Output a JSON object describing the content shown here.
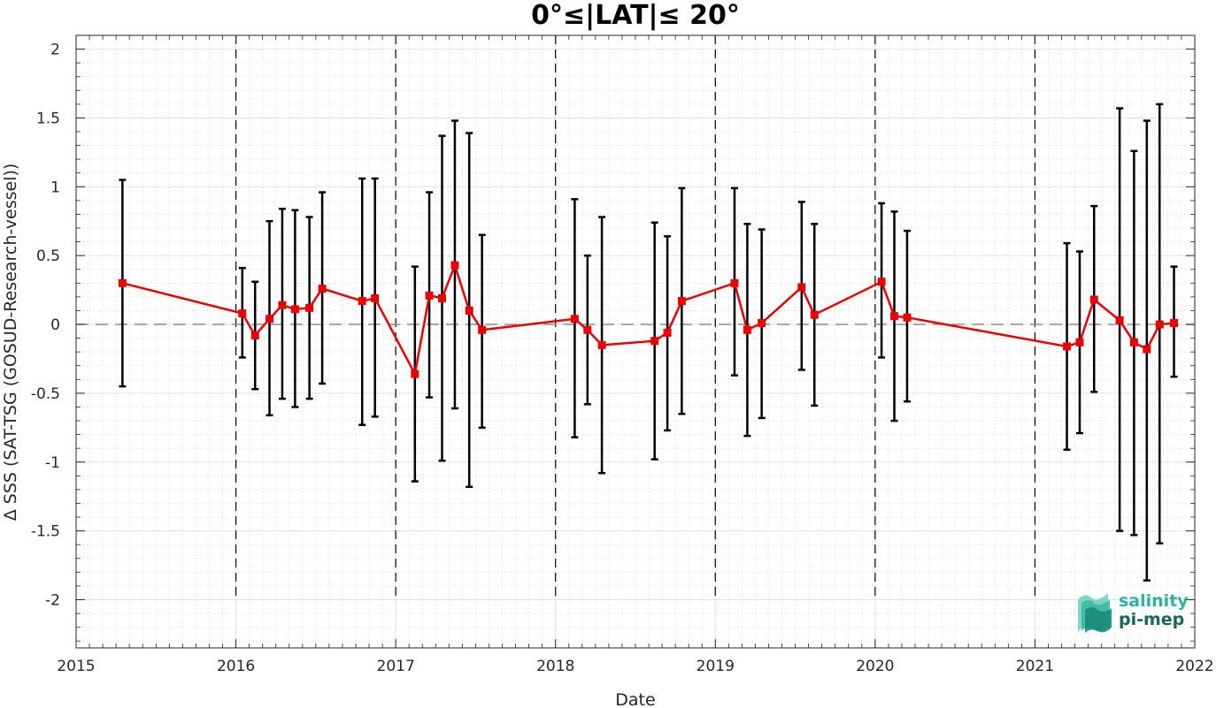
{
  "chart_data": {
    "type": "line",
    "title": "0°≤|LAT|≤ 20°",
    "xlabel": "Date",
    "ylabel": "Δ SSS (SAT-TSG (GOSUD-Research-vessel))",
    "xlim": [
      2015,
      2022
    ],
    "ylim": [
      -2.35,
      2.1
    ],
    "xticks": [
      "2015",
      "2016",
      "2017",
      "2018",
      "2019",
      "2020",
      "2021",
      "2022"
    ],
    "yticks": [
      "2",
      "1.5",
      "1",
      "0.5",
      "0",
      "-0.5",
      "-1",
      "-1.5",
      "-2"
    ],
    "grid": true,
    "reference_line": 0,
    "year_dividers": [
      2016,
      2017,
      2018,
      2019,
      2020,
      2021
    ],
    "series": [
      {
        "color": "#ee0000",
        "x": [
          2015.29,
          2016.04,
          2016.12,
          2016.21,
          2016.29,
          2016.37,
          2016.46,
          2016.54,
          2016.79,
          2016.87,
          2017.12,
          2017.21,
          2017.29,
          2017.37,
          2017.46,
          2017.54,
          2018.12,
          2018.2,
          2018.29,
          2018.62,
          2018.7,
          2018.79,
          2019.12,
          2019.2,
          2019.29,
          2019.54,
          2019.62,
          2020.04,
          2020.12,
          2020.2,
          2021.2,
          2021.28,
          2021.37,
          2021.53,
          2021.62,
          2021.7,
          2021.78,
          2021.87
        ],
        "y": [
          0.3,
          0.08,
          -0.08,
          0.04,
          0.14,
          0.11,
          0.12,
          0.26,
          0.17,
          0.19,
          -0.36,
          0.21,
          0.19,
          0.43,
          0.1,
          -0.04,
          0.04,
          -0.04,
          -0.15,
          -0.12,
          -0.06,
          0.17,
          0.3,
          -0.04,
          0.01,
          0.27,
          0.07,
          0.31,
          0.06,
          0.05,
          -0.16,
          -0.13,
          0.18,
          0.03,
          -0.13,
          -0.18,
          0.0,
          0.01
        ],
        "lower": [
          -0.45,
          -0.24,
          -0.47,
          -0.66,
          -0.54,
          -0.6,
          -0.54,
          -0.43,
          -0.73,
          -0.67,
          -1.14,
          -0.53,
          -0.99,
          -0.61,
          -1.18,
          -0.75,
          -0.82,
          -0.58,
          -1.08,
          -0.98,
          -0.77,
          -0.65,
          -0.37,
          -0.81,
          -0.68,
          -0.33,
          -0.59,
          -0.24,
          -0.7,
          -0.56,
          -0.91,
          -0.79,
          -0.49,
          -1.5,
          -1.53,
          -1.86,
          -1.59,
          -0.38
        ],
        "upper": [
          1.05,
          0.41,
          0.31,
          0.75,
          0.84,
          0.83,
          0.78,
          0.96,
          1.06,
          1.06,
          0.42,
          0.96,
          1.37,
          1.48,
          1.39,
          0.65,
          0.91,
          0.5,
          0.78,
          0.74,
          0.64,
          0.99,
          0.99,
          0.73,
          0.69,
          0.89,
          0.73,
          0.88,
          0.82,
          0.68,
          0.59,
          0.53,
          0.86,
          1.57,
          1.26,
          1.48,
          1.6,
          0.42
        ]
      }
    ]
  },
  "logo": {
    "line1": "salinity",
    "line2": "pi-mep",
    "color1": "#2ab5a0",
    "color2": "#17665f"
  }
}
